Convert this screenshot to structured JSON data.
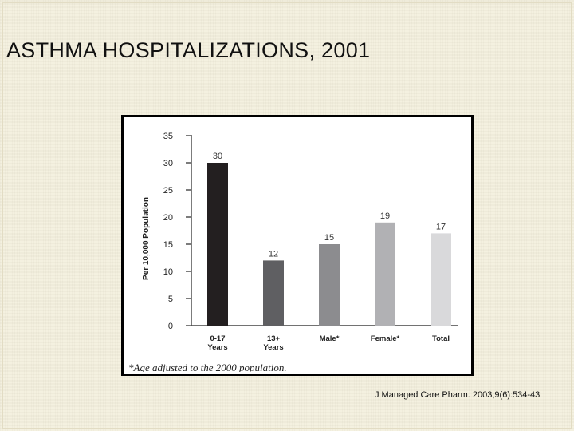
{
  "slide": {
    "title": "ASTHMA HOSPITALIZATIONS, 2001",
    "citation": "J Managed Care Pharm. 2003;9(6):534-43"
  },
  "chart_data": {
    "type": "bar",
    "title": "ASTHMA HOSPITALIZATIONS, 2001",
    "ylabel": "Per 10,000 Population",
    "xlabel": "",
    "ylim": [
      0,
      35
    ],
    "yticks": [
      0,
      5,
      10,
      15,
      20,
      25,
      30,
      35
    ],
    "grid": false,
    "categories": [
      [
        "0-17",
        "Years"
      ],
      [
        "13+",
        "Years"
      ],
      [
        "Male*"
      ],
      [
        "Female*"
      ],
      [
        "Total"
      ]
    ],
    "values": [
      30,
      12,
      15,
      19,
      17
    ],
    "value_labels": [
      "30",
      "12",
      "15",
      "19",
      "17"
    ],
    "colors": [
      "#231f20",
      "#5f5f62",
      "#8c8c8f",
      "#b1b1b4",
      "#d9d9db"
    ],
    "footnote": "*Age adjusted to the 2000 population."
  }
}
